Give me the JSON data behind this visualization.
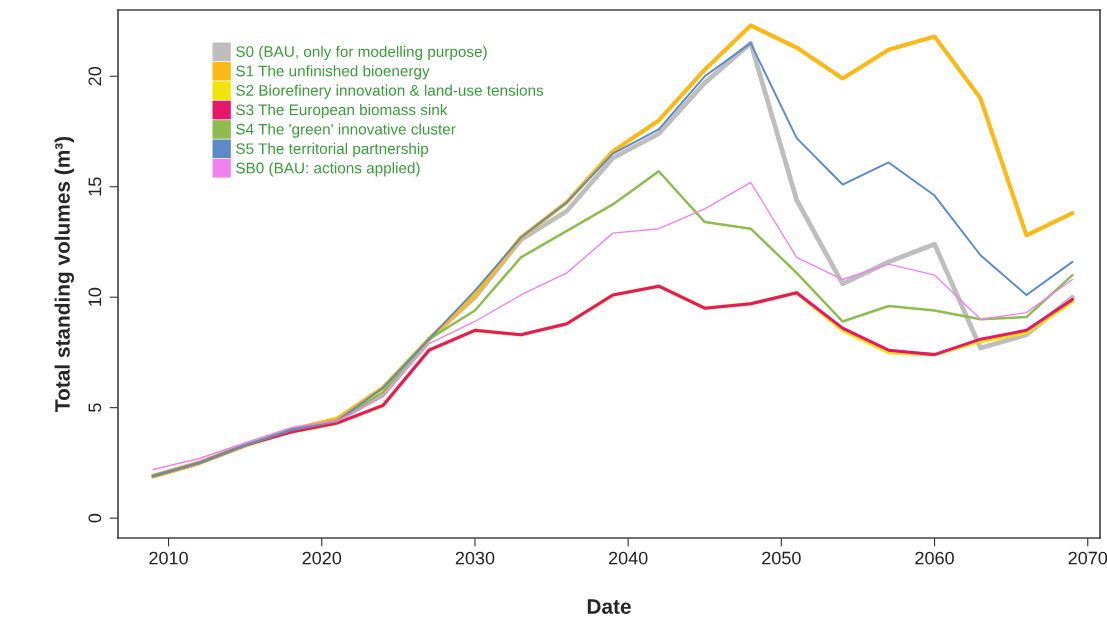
{
  "chart_data": {
    "type": "line",
    "xlabel": "Date",
    "ylabel": "Total standing volumes (m³)",
    "x": [
      2009,
      2012,
      2015,
      2018,
      2021,
      2024,
      2027,
      2030,
      2033,
      2036,
      2039,
      2042,
      2045,
      2048,
      2051,
      2054,
      2057,
      2060,
      2063,
      2066,
      2069
    ],
    "series": [
      {
        "name": "S0 (BAU, only for modelling purpose)",
        "color": "#bebebe",
        "values": [
          1.9,
          2.5,
          3.3,
          4.0,
          4.4,
          5.6,
          8.1,
          10.0,
          12.6,
          13.9,
          16.3,
          17.4,
          19.7,
          21.5,
          14.4,
          10.6,
          11.6,
          12.4,
          7.7,
          8.3,
          10.0
        ]
      },
      {
        "name": "S1 The unfinished bioenergy",
        "color": "#fbb917",
        "values": [
          1.9,
          2.5,
          3.3,
          4.0,
          4.5,
          5.9,
          8.1,
          10.1,
          12.7,
          14.3,
          16.6,
          18.0,
          20.3,
          22.3,
          21.3,
          19.9,
          21.2,
          21.8,
          19.0,
          12.8,
          13.8
        ]
      },
      {
        "name": "S2 Biorefinery innovation & land-use tensions",
        "color": "#f0e40c",
        "values": [
          1.9,
          2.5,
          3.3,
          3.9,
          4.3,
          5.1,
          7.6,
          8.5,
          8.3,
          8.8,
          10.1,
          10.5,
          9.5,
          9.7,
          10.2,
          8.5,
          7.5,
          7.4,
          8.0,
          8.4,
          9.8
        ]
      },
      {
        "name": "S3 The European biomass sink",
        "color": "#e6176b",
        "values": [
          1.9,
          2.5,
          3.3,
          3.9,
          4.3,
          5.1,
          7.6,
          8.5,
          8.3,
          8.8,
          10.1,
          10.5,
          9.5,
          9.7,
          10.2,
          8.6,
          7.6,
          7.4,
          8.1,
          8.5,
          9.9
        ]
      },
      {
        "name": "S4 The 'green' innovative cluster",
        "color": "#8fbc4f",
        "values": [
          1.9,
          2.5,
          3.3,
          4.0,
          4.4,
          5.7,
          8.1,
          9.4,
          11.8,
          13.0,
          14.2,
          15.7,
          13.4,
          13.1,
          11.1,
          8.9,
          9.6,
          9.4,
          9.0,
          9.1,
          11.0
        ]
      },
      {
        "name": "S5 The territorial partnership",
        "color": "#5b8ac6",
        "values": [
          1.9,
          2.5,
          3.3,
          4.0,
          4.4,
          5.9,
          8.1,
          10.3,
          12.7,
          14.3,
          16.5,
          17.6,
          20.0,
          21.5,
          17.2,
          15.1,
          16.1,
          14.6,
          11.9,
          10.1,
          11.6
        ]
      },
      {
        "name": "SB0 (BAU: actions applied)",
        "color": "#ee82ee",
        "values": [
          2.2,
          2.7,
          3.4,
          4.1,
          4.4,
          5.5,
          7.9,
          8.9,
          10.1,
          11.1,
          12.9,
          13.1,
          14.0,
          15.2,
          11.8,
          10.8,
          11.5,
          11.0,
          9.0,
          9.3,
          10.8
        ]
      }
    ],
    "xlim": [
      2006.7,
      2070.8
    ],
    "xticks": [
      2010,
      2020,
      2030,
      2040,
      2050,
      2060,
      2070
    ],
    "ylim": [
      -0.9,
      23.0
    ],
    "yticks": [
      0,
      5,
      10,
      15,
      20
    ],
    "grid": false,
    "legend": "top left"
  }
}
